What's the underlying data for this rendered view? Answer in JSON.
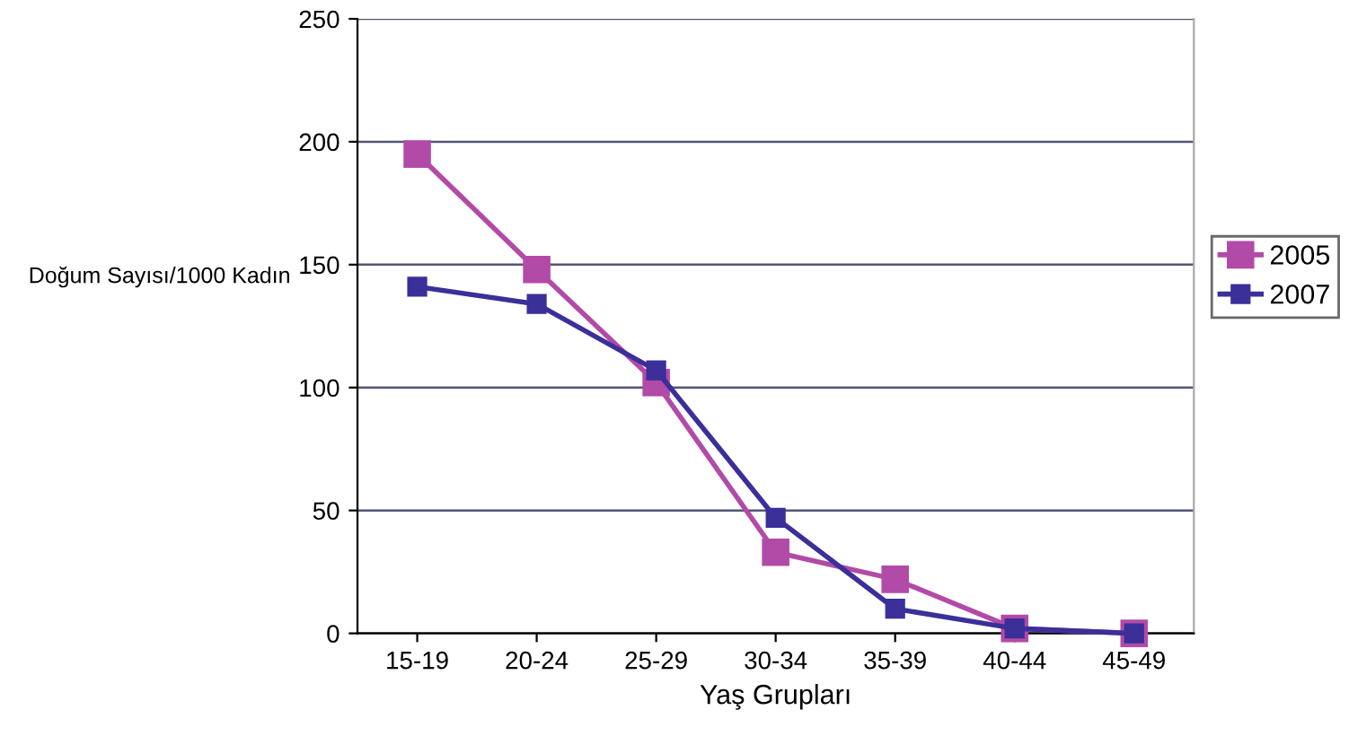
{
  "chart_data": {
    "type": "line",
    "xlabel": "Yaş Grupları",
    "ylabel": "Doğum Sayısı/1000 Kadın",
    "categories": [
      "15-19",
      "20-24",
      "25-29",
      "30-34",
      "35-39",
      "40-44",
      "45-49"
    ],
    "series": [
      {
        "name": "2005",
        "color": "#b24aa8",
        "values": [
          195,
          148,
          102,
          33,
          22,
          2,
          0
        ]
      },
      {
        "name": "2007",
        "color": "#3b2f9a",
        "values": [
          141,
          134,
          107,
          47,
          10,
          2,
          0
        ]
      }
    ],
    "ylim": [
      0,
      250
    ],
    "yticks": [
      0,
      50,
      100,
      150,
      200,
      250
    ],
    "grid": "y",
    "legend": "right",
    "marker": "square",
    "line_style": "solid"
  }
}
